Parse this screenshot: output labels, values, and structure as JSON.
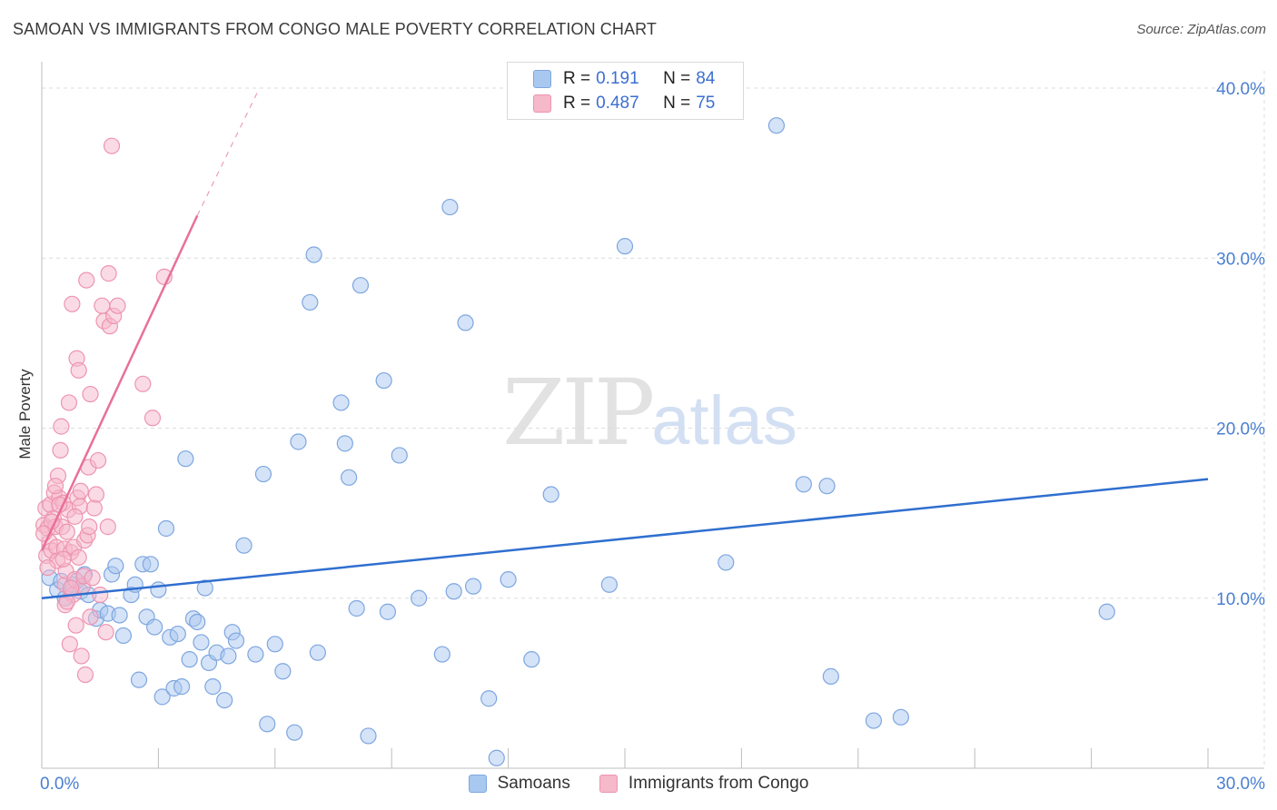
{
  "header": {
    "title": "SAMOAN VS IMMIGRANTS FROM CONGO MALE POVERTY CORRELATION CHART",
    "source": "Source: ZipAtlas.com"
  },
  "watermark": {
    "zip": "ZIP",
    "atlas": "atlas"
  },
  "colors": {
    "blue_fill": "#a9c8f0",
    "blue_stroke": "#7ea6e0",
    "blue_line": "#2f6fcf",
    "pink_fill": "#f6b8cb",
    "pink_stroke": "#ee94b0",
    "pink_line": "#e8709a",
    "tick_text": "#4a7fd0",
    "grid": "#dcdcdc"
  },
  "legend": {
    "rows": [
      {
        "r_label": "R =",
        "r_value": "0.191",
        "n_label": "N =",
        "n_value": "84"
      },
      {
        "r_label": "R =",
        "r_value": "0.487",
        "n_label": "N =",
        "n_value": "75"
      }
    ]
  },
  "bottom_legend": [
    "Samoans",
    "Immigrants from Congo"
  ],
  "chart_data": {
    "type": "scatter",
    "title": "SAMOAN VS IMMIGRANTS FROM CONGO MALE POVERTY CORRELATION CHART",
    "xlabel": "",
    "ylabel": "Male Poverty",
    "xlim": [
      0,
      30
    ],
    "ylim": [
      0,
      40
    ],
    "x_tick_labels": [
      "0.0%",
      "30.0%"
    ],
    "y_ticks": [
      10,
      20,
      30,
      40
    ],
    "y_tick_labels": [
      "10.0%",
      "20.0%",
      "30.0%",
      "40.0%"
    ],
    "grid": true,
    "series": [
      {
        "name": "Samoans",
        "r": 0.191,
        "n": 84,
        "trend": {
          "x": [
            0,
            30
          ],
          "y": [
            10.0,
            17.0
          ]
        },
        "points": [
          [
            0.2,
            11.2
          ],
          [
            0.4,
            10.5
          ],
          [
            0.5,
            11.0
          ],
          [
            0.6,
            10.0
          ],
          [
            0.8,
            10.8
          ],
          [
            0.9,
            11.0
          ],
          [
            1.0,
            10.4
          ],
          [
            1.1,
            11.4
          ],
          [
            1.2,
            10.2
          ],
          [
            1.4,
            8.8
          ],
          [
            1.5,
            9.3
          ],
          [
            1.7,
            9.1
          ],
          [
            1.8,
            11.4
          ],
          [
            1.9,
            11.9
          ],
          [
            2.0,
            9.0
          ],
          [
            2.1,
            7.8
          ],
          [
            2.3,
            10.2
          ],
          [
            2.4,
            10.8
          ],
          [
            2.5,
            5.2
          ],
          [
            2.6,
            12.0
          ],
          [
            2.7,
            8.9
          ],
          [
            2.8,
            12.0
          ],
          [
            2.9,
            8.3
          ],
          [
            3.0,
            10.5
          ],
          [
            3.1,
            4.2
          ],
          [
            3.2,
            14.1
          ],
          [
            3.3,
            7.7
          ],
          [
            3.4,
            4.7
          ],
          [
            3.5,
            7.9
          ],
          [
            3.6,
            4.8
          ],
          [
            3.7,
            18.2
          ],
          [
            3.8,
            6.4
          ],
          [
            3.9,
            8.8
          ],
          [
            4.0,
            8.6
          ],
          [
            4.1,
            7.4
          ],
          [
            4.2,
            10.6
          ],
          [
            4.3,
            6.2
          ],
          [
            4.4,
            4.8
          ],
          [
            4.5,
            6.8
          ],
          [
            4.7,
            4.0
          ],
          [
            4.8,
            6.6
          ],
          [
            4.9,
            8.0
          ],
          [
            5.0,
            7.5
          ],
          [
            5.2,
            13.1
          ],
          [
            5.5,
            6.7
          ],
          [
            5.7,
            17.3
          ],
          [
            6.0,
            7.3
          ],
          [
            6.2,
            5.7
          ],
          [
            6.5,
            2.1
          ],
          [
            6.6,
            19.2
          ],
          [
            6.9,
            27.4
          ],
          [
            7.0,
            30.2
          ],
          [
            7.1,
            6.8
          ],
          [
            7.7,
            21.5
          ],
          [
            7.8,
            19.1
          ],
          [
            7.9,
            17.1
          ],
          [
            8.1,
            9.4
          ],
          [
            8.2,
            28.4
          ],
          [
            8.4,
            1.9
          ],
          [
            8.8,
            22.8
          ],
          [
            8.9,
            9.2
          ],
          [
            9.2,
            18.4
          ],
          [
            9.7,
            10.0
          ],
          [
            10.3,
            6.7
          ],
          [
            10.5,
            33.0
          ],
          [
            10.6,
            10.4
          ],
          [
            10.9,
            26.2
          ],
          [
            11.1,
            10.7
          ],
          [
            11.5,
            4.1
          ],
          [
            11.7,
            0.6
          ],
          [
            12.6,
            6.4
          ],
          [
            13.1,
            16.1
          ],
          [
            14.6,
            10.8
          ],
          [
            15.0,
            30.7
          ],
          [
            17.6,
            12.1
          ],
          [
            18.9,
            37.8
          ],
          [
            19.6,
            16.7
          ],
          [
            20.2,
            16.6
          ],
          [
            20.3,
            5.4
          ],
          [
            21.4,
            2.8
          ],
          [
            22.1,
            3.0
          ],
          [
            27.4,
            9.2
          ],
          [
            12.0,
            11.1
          ],
          [
            5.8,
            2.6
          ]
        ]
      },
      {
        "name": "Immigrants from Congo",
        "r": 0.487,
        "n": 75,
        "trend": {
          "x": [
            0,
            4.0
          ],
          "y": [
            12.8,
            32.5
          ],
          "dashed_to": {
            "x": 5.6,
            "y": 40.0
          }
        },
        "points": [
          [
            0.05,
            14.3
          ],
          [
            0.1,
            15.3
          ],
          [
            0.12,
            12.5
          ],
          [
            0.15,
            14.1
          ],
          [
            0.2,
            13.3
          ],
          [
            0.22,
            15.5
          ],
          [
            0.25,
            12.8
          ],
          [
            0.3,
            14.7
          ],
          [
            0.32,
            16.2
          ],
          [
            0.35,
            14.2
          ],
          [
            0.38,
            13.0
          ],
          [
            0.4,
            12.2
          ],
          [
            0.42,
            17.2
          ],
          [
            0.45,
            15.9
          ],
          [
            0.48,
            18.7
          ],
          [
            0.5,
            20.1
          ],
          [
            0.52,
            14.2
          ],
          [
            0.55,
            15.6
          ],
          [
            0.58,
            12.9
          ],
          [
            0.6,
            10.8
          ],
          [
            0.62,
            11.6
          ],
          [
            0.65,
            13.9
          ],
          [
            0.68,
            15.2
          ],
          [
            0.7,
            21.5
          ],
          [
            0.72,
            7.3
          ],
          [
            0.75,
            12.7
          ],
          [
            0.78,
            27.3
          ],
          [
            0.8,
            10.2
          ],
          [
            0.82,
            13.0
          ],
          [
            0.85,
            11.1
          ],
          [
            0.88,
            8.4
          ],
          [
            0.9,
            24.1
          ],
          [
            0.92,
            15.9
          ],
          [
            0.95,
            23.4
          ],
          [
            0.98,
            15.4
          ],
          [
            1.0,
            16.3
          ],
          [
            1.02,
            6.6
          ],
          [
            1.05,
            10.7
          ],
          [
            1.08,
            11.3
          ],
          [
            1.1,
            13.4
          ],
          [
            1.12,
            5.5
          ],
          [
            1.15,
            28.7
          ],
          [
            1.18,
            13.7
          ],
          [
            1.2,
            17.7
          ],
          [
            1.22,
            14.2
          ],
          [
            1.25,
            22.0
          ],
          [
            1.3,
            11.2
          ],
          [
            1.35,
            15.3
          ],
          [
            1.4,
            16.1
          ],
          [
            1.45,
            18.1
          ],
          [
            1.5,
            10.2
          ],
          [
            1.55,
            27.2
          ],
          [
            1.6,
            26.3
          ],
          [
            1.65,
            8.0
          ],
          [
            1.7,
            14.2
          ],
          [
            1.72,
            29.1
          ],
          [
            1.75,
            26.0
          ],
          [
            1.8,
            36.6
          ],
          [
            1.85,
            26.6
          ],
          [
            1.95,
            27.2
          ],
          [
            2.6,
            22.6
          ],
          [
            2.85,
            20.6
          ],
          [
            3.15,
            28.9
          ],
          [
            0.6,
            9.6
          ],
          [
            0.15,
            11.8
          ],
          [
            0.25,
            14.5
          ],
          [
            0.35,
            16.6
          ],
          [
            0.45,
            15.5
          ],
          [
            0.55,
            12.3
          ],
          [
            0.65,
            9.8
          ],
          [
            0.75,
            10.6
          ],
          [
            0.85,
            14.8
          ],
          [
            0.95,
            12.4
          ],
          [
            1.25,
            8.9
          ],
          [
            0.05,
            13.8
          ]
        ]
      }
    ]
  }
}
